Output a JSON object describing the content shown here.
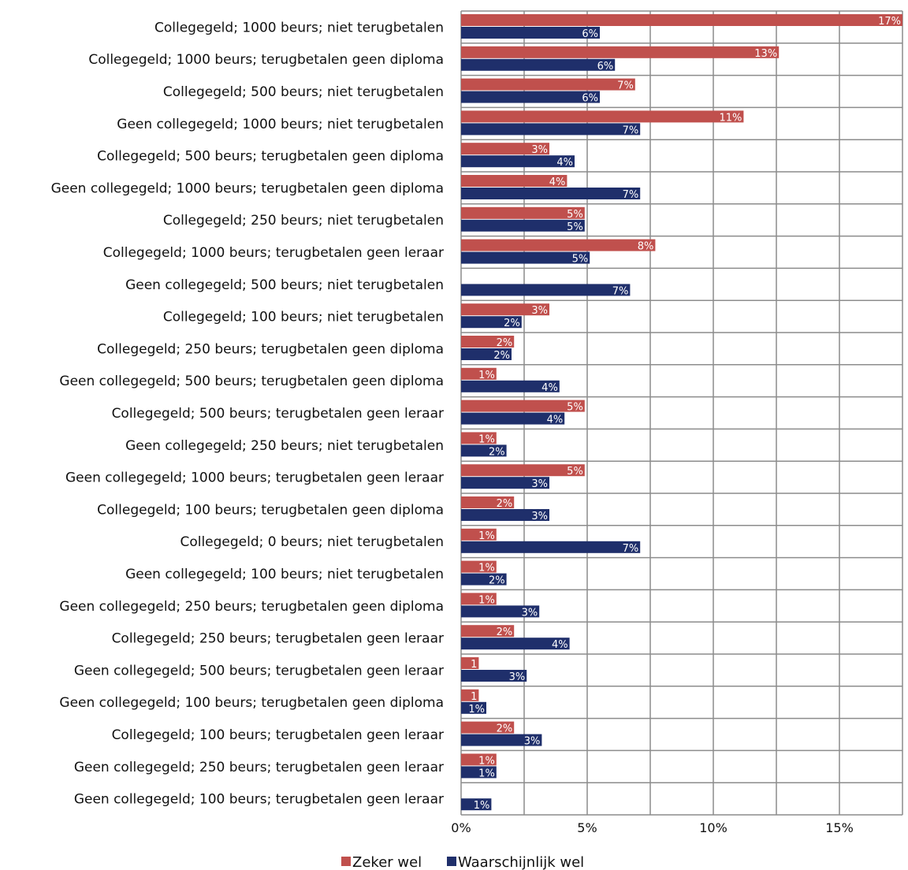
{
  "chart_data": {
    "type": "bar",
    "orientation": "horizontal",
    "title": "",
    "xlabel": "",
    "ylabel": "",
    "xlim": [
      0,
      17.5
    ],
    "x_ticks": [
      "0%",
      "5%",
      "10%",
      "15%"
    ],
    "grid": true,
    "legend_position": "bottom",
    "categories": [
      "Collegegeld; 1000 beurs; niet terugbetalen",
      "Collegegeld; 1000 beurs; terugbetalen geen diploma",
      "Collegegeld; 500 beurs; niet terugbetalen",
      "Geen collegegeld; 1000 beurs; niet terugbetalen",
      "Collegegeld; 500 beurs; terugbetalen geen diploma",
      "Geen collegegeld; 1000 beurs; terugbetalen geen diploma",
      "Collegegeld; 250 beurs; niet terugbetalen",
      "Collegegeld; 1000 beurs; terugbetalen geen leraar",
      "Geen collegegeld; 500 beurs; niet terugbetalen",
      "Collegegeld; 100 beurs; niet terugbetalen",
      "Collegegeld; 250 beurs; terugbetalen geen diploma",
      "Geen collegegeld; 500 beurs; terugbetalen geen diploma",
      "Collegegeld; 500 beurs; terugbetalen geen leraar",
      "Geen collegegeld; 250 beurs; niet terugbetalen",
      "Geen collegegeld; 1000 beurs; terugbetalen geen leraar",
      "Collegegeld; 100 beurs; terugbetalen geen diploma",
      "Collegegeld; 0 beurs; niet terugbetalen",
      "Geen collegegeld; 100 beurs; niet terugbetalen",
      "Geen collegegeld; 250 beurs; terugbetalen geen diploma",
      "Collegegeld; 250 beurs; terugbetalen geen leraar",
      "Geen collegegeld; 500 beurs; terugbetalen geen leraar",
      "Geen collegegeld; 100 beurs; terugbetalen geen diploma",
      "Collegegeld; 100 beurs; terugbetalen geen leraar",
      "Geen collegegeld; 250 beurs; terugbetalen geen leraar",
      "Geen collegegeld; 100 beurs; terugbetalen geen leraar"
    ],
    "series": [
      {
        "name": "Zeker wel",
        "color": "#C0504D",
        "values": [
          17.5,
          12.6,
          6.9,
          11.2,
          3.5,
          4.2,
          4.9,
          7.7,
          null,
          3.5,
          2.1,
          1.4,
          4.9,
          1.4,
          4.9,
          2.1,
          1.4,
          1.4,
          1.4,
          2.1,
          0.7,
          0.7,
          2.1,
          1.4,
          null
        ],
        "labels": [
          "17%",
          "13%",
          "7%",
          "11%",
          "3%",
          "4%",
          "5%",
          "8%",
          "",
          "3%",
          "2%",
          "1%",
          "5%",
          "1%",
          "5%",
          "2%",
          "1%",
          "1%",
          "1%",
          "2%",
          "1",
          "1",
          "2%",
          "1%",
          ""
        ]
      },
      {
        "name": "Waarschijnlijk wel",
        "color": "#1F2F6B",
        "values": [
          5.5,
          6.1,
          5.5,
          7.1,
          4.5,
          7.1,
          4.9,
          5.1,
          6.7,
          2.4,
          2.0,
          3.9,
          4.1,
          1.8,
          3.5,
          3.5,
          7.1,
          1.8,
          3.1,
          4.3,
          2.6,
          1.0,
          3.2,
          1.4,
          1.2
        ],
        "labels": [
          "6%",
          "6%",
          "6%",
          "7%",
          "4%",
          "7%",
          "5%",
          "5%",
          "7%",
          "2%",
          "2%",
          "4%",
          "4%",
          "2%",
          "3%",
          "3%",
          "7%",
          "2%",
          "3%",
          "4%",
          "3%",
          "1%",
          "3%",
          "1%",
          "1%"
        ]
      }
    ]
  }
}
